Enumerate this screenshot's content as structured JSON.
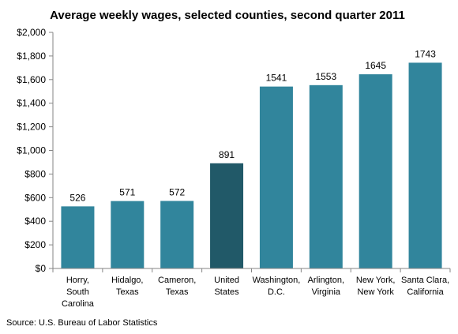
{
  "chart_data": {
    "type": "bar",
    "title": "Average weekly wages, selected counties, second quarter 2011",
    "categories": [
      [
        "Horry,",
        "South",
        "Carolina"
      ],
      [
        "Hidalgo,",
        "Texas"
      ],
      [
        "Cameron,",
        "Texas"
      ],
      [
        "United",
        "States"
      ],
      [
        "Washington,",
        "D.C."
      ],
      [
        "Arlington,",
        "Virginia"
      ],
      [
        "New York,",
        "New York"
      ],
      [
        "Santa Clara,",
        "California"
      ]
    ],
    "values": [
      526,
      571,
      572,
      891,
      1541,
      1553,
      1645,
      1743
    ],
    "highlight_index": 3,
    "ylim": [
      0,
      2000
    ],
    "yticks": [
      0,
      200,
      400,
      600,
      800,
      1000,
      1200,
      1400,
      1600,
      1800,
      2000
    ],
    "ytick_labels": [
      "$0",
      "$200",
      "$400",
      "$600",
      "$800",
      "$1,000",
      "$1,200",
      "$1,400",
      "$1,600",
      "$1,800",
      "$2,000"
    ],
    "colors": {
      "bar": "#31859c",
      "highlight": "#215968",
      "axis": "#868686"
    },
    "grid": false,
    "legend": "none"
  },
  "source": "Source: U.S. Bureau of Labor Statistics"
}
